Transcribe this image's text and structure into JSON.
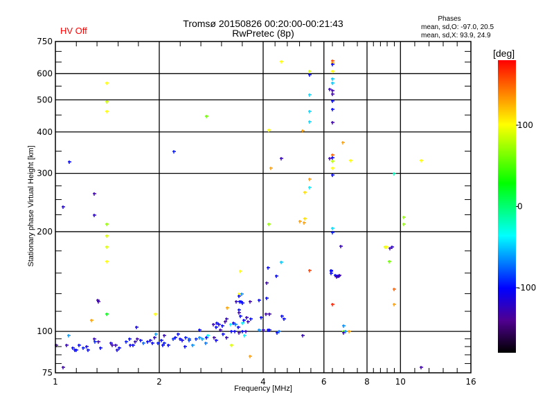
{
  "header": {
    "title_line1": "Tromsø 20150826 00:20:00-00:21:43",
    "title_line2": "RwPretec (8p)",
    "status": "HV Off",
    "phases_heading": "Phases",
    "phases_o": "mean, sd,O: -97.0, 20.5",
    "phases_x": "mean, sd,X:  93.9, 24.9"
  },
  "chart_data": {
    "type": "scatter",
    "title": "Tromsø 20150826 00:20:00-00:21:43",
    "xlabel": "Frequency [MHz]",
    "ylabel": "Stationary phase Virtual Height [km]",
    "xscale": "log",
    "yscale": "log",
    "xlim": [
      1,
      16
    ],
    "ylim": [
      75,
      750
    ],
    "xticks": [
      1,
      2,
      4,
      6,
      8,
      10,
      16
    ],
    "xtick_labels": [
      "1",
      "2",
      "4",
      "6",
      "8",
      "10",
      "16"
    ],
    "yticks": [
      75,
      100,
      200,
      300,
      400,
      500,
      600,
      750
    ],
    "ytick_labels": [
      "75",
      "100",
      "200",
      "300",
      "400",
      "500",
      "600",
      "750"
    ],
    "xgrid": [
      2,
      4,
      6,
      8,
      10
    ],
    "ygrid": [
      100,
      200,
      300,
      400,
      500,
      600
    ],
    "colorbar": {
      "label": "[deg]",
      "range": [
        -180,
        180
      ],
      "ticks": [
        100,
        0,
        -100
      ],
      "tick_labels": [
        "100",
        "0",
        "-100"
      ]
    },
    "point_fields": [
      "frequency_mhz",
      "height_km",
      "phase_deg"
    ],
    "points": [
      [
        1.005,
        91,
        -130
      ],
      [
        1.077,
        91,
        -125
      ],
      [
        1.138,
        88,
        -100
      ],
      [
        1.12,
        89,
        -100
      ],
      [
        1.15,
        88,
        -100
      ],
      [
        1.17,
        91,
        -100
      ],
      [
        1.203,
        89,
        -95
      ],
      [
        1.231,
        90,
        -110
      ],
      [
        1.243,
        88,
        -100
      ],
      [
        1.295,
        95,
        -125
      ],
      [
        1.301,
        93,
        -90
      ],
      [
        1.332,
        93,
        -130
      ],
      [
        1.351,
        89,
        -100
      ],
      [
        1.447,
        92,
        -115
      ],
      [
        1.46,
        91,
        -130
      ],
      [
        1.495,
        91,
        -125
      ],
      [
        1.508,
        88,
        -110
      ],
      [
        1.53,
        89,
        -100
      ],
      [
        1.602,
        93,
        -95
      ],
      [
        1.639,
        95,
        -100
      ],
      [
        1.647,
        91,
        -105
      ],
      [
        1.677,
        91,
        -100
      ],
      [
        1.701,
        93,
        -125
      ],
      [
        1.725,
        95,
        -130
      ],
      [
        1.765,
        94,
        -100
      ],
      [
        1.798,
        92,
        -75
      ],
      [
        1.849,
        93,
        -100
      ],
      [
        1.883,
        94,
        -110
      ],
      [
        1.91,
        92,
        -100
      ],
      [
        1.937,
        96,
        -120
      ],
      [
        1.955,
        98,
        -60
      ],
      [
        1.983,
        92,
        -95
      ],
      [
        2.048,
        91,
        -100
      ],
      [
        2.068,
        97,
        -125
      ],
      [
        1.092,
        97,
        -60
      ],
      [
        1.052,
        78,
        -130
      ],
      [
        1.326,
        124,
        -130
      ],
      [
        1.332,
        123,
        -130
      ],
      [
        1.408,
        113,
        25
      ],
      [
        1.271,
        108,
        130
      ],
      [
        1.946,
        113,
        100
      ],
      [
        1.717,
        103,
        -110
      ],
      [
        2.03,
        94,
        -100
      ],
      [
        2.068,
        92,
        -95
      ],
      [
        2.124,
        91,
        -100
      ],
      [
        2.194,
        95,
        -90
      ],
      [
        2.224,
        96,
        -100
      ],
      [
        2.297,
        95,
        -100
      ],
      [
        2.329,
        94,
        -110
      ],
      [
        2.383,
        96,
        -95
      ],
      [
        2.438,
        94,
        -85
      ],
      [
        2.495,
        91,
        -65
      ],
      [
        2.553,
        95,
        -90
      ],
      [
        2.614,
        96,
        -65
      ],
      [
        2.662,
        95,
        -60
      ],
      [
        2.724,
        92,
        -70
      ],
      [
        2.737,
        96,
        -100
      ],
      [
        2.762,
        97,
        -40
      ],
      [
        2.88,
        96,
        -130
      ],
      [
        2.92,
        94,
        -105
      ],
      [
        3.059,
        98,
        -100
      ],
      [
        3.131,
        96,
        -125
      ],
      [
        2.372,
        90,
        -100
      ],
      [
        2.266,
        98,
        -100
      ],
      [
        2.438,
        95,
        -80
      ],
      [
        2.614,
        101,
        -100
      ],
      [
        2.867,
        105,
        -125
      ],
      [
        2.934,
        106,
        -100
      ],
      [
        2.92,
        103,
        -100
      ],
      [
        2.975,
        105,
        -110
      ],
      [
        3.045,
        104,
        -100
      ],
      [
        3.003,
        101,
        -130
      ],
      [
        3.219,
        105,
        -40
      ],
      [
        3.283,
        106,
        -100
      ],
      [
        3.329,
        105,
        -70
      ],
      [
        3.391,
        103,
        -100
      ],
      [
        3.234,
        100,
        -100
      ],
      [
        3.313,
        100,
        -105
      ],
      [
        3.406,
        99,
        -130
      ],
      [
        3.482,
        100,
        -100
      ],
      [
        3.563,
        100,
        -125
      ],
      [
        3.89,
        101,
        -65
      ],
      [
        4.0,
        101,
        -125
      ],
      [
        3.131,
        109,
        -125
      ],
      [
        3.102,
        107,
        -130
      ],
      [
        3.531,
        97,
        -40
      ],
      [
        3.234,
        91,
        90
      ],
      [
        3.665,
        84,
        130
      ],
      [
        3.406,
        116,
        -100
      ],
      [
        3.406,
        114,
        -130
      ],
      [
        3.58,
        110,
        -125
      ],
      [
        3.438,
        111,
        -100
      ],
      [
        3.514,
        108,
        -100
      ],
      [
        3.614,
        107,
        -125
      ],
      [
        3.682,
        109,
        -100
      ],
      [
        3.944,
        110,
        -100
      ],
      [
        3.482,
        106,
        -40
      ],
      [
        3.146,
        118,
        130
      ],
      [
        3.344,
        123,
        -125
      ],
      [
        3.422,
        123,
        -100
      ],
      [
        3.454,
        123,
        -100
      ],
      [
        3.482,
        122,
        -100
      ],
      [
        3.665,
        123,
        -130
      ],
      [
        3.89,
        124,
        -100
      ],
      [
        4.093,
        126,
        -100
      ],
      [
        3.406,
        130,
        100
      ],
      [
        3.47,
        130,
        -65
      ],
      [
        3.406,
        128,
        -100
      ],
      [
        4.093,
        140,
        -130
      ],
      [
        4.15,
        211,
        70
      ],
      [
        4.074,
        113,
        -130
      ],
      [
        4.17,
        113,
        -130
      ],
      [
        4.531,
        111,
        -100
      ],
      [
        4.594,
        109,
        -100
      ],
      [
        4.131,
        101,
        -100
      ],
      [
        4.17,
        101,
        -100
      ],
      [
        4.387,
        99,
        -100
      ],
      [
        4.448,
        100,
        -70
      ],
      [
        5.206,
        97,
        -125
      ],
      [
        4.131,
        156,
        -100
      ],
      [
        4.367,
        147,
        -100
      ],
      [
        4.51,
        162,
        -50
      ],
      [
        5.45,
        153,
        160
      ],
      [
        4.208,
        311,
        130
      ],
      [
        4.51,
        333,
        -125
      ],
      [
        4.15,
        405,
        100
      ],
      [
        4.51,
        652,
        100
      ],
      [
        5.45,
        610,
        90
      ],
      [
        5.45,
        595,
        -100
      ],
      [
        5.45,
        518,
        -45
      ],
      [
        5.45,
        461,
        -45
      ],
      [
        5.45,
        430,
        -45
      ],
      [
        5.206,
        404,
        130
      ],
      [
        5.45,
        288,
        130
      ],
      [
        5.45,
        272,
        -40
      ],
      [
        5.278,
        263,
        110
      ],
      [
        5.111,
        215,
        130
      ],
      [
        5.278,
        219,
        110
      ],
      [
        5.254,
        213,
        130
      ],
      [
        6.35,
        656,
        160
      ],
      [
        6.35,
        646,
        130
      ],
      [
        6.35,
        640,
        -100
      ],
      [
        6.35,
        611,
        100
      ],
      [
        6.35,
        579,
        -50
      ],
      [
        6.35,
        562,
        -50
      ],
      [
        6.232,
        538,
        -125
      ],
      [
        6.35,
        533,
        -130
      ],
      [
        6.35,
        521,
        -130
      ],
      [
        6.35,
        496,
        -100
      ],
      [
        6.35,
        468,
        -100
      ],
      [
        6.35,
        428,
        -130
      ],
      [
        6.35,
        341,
        150
      ],
      [
        6.35,
        334,
        -100
      ],
      [
        6.232,
        333,
        -130
      ],
      [
        6.35,
        327,
        80
      ],
      [
        6.35,
        311,
        100
      ],
      [
        6.35,
        297,
        -100
      ],
      [
        6.35,
        205,
        -45
      ],
      [
        6.35,
        199,
        -95
      ],
      [
        6.29,
        153,
        -100
      ],
      [
        6.29,
        152,
        -100
      ],
      [
        6.29,
        150,
        -100
      ],
      [
        6.467,
        148,
        -100
      ],
      [
        6.557,
        147,
        -100
      ],
      [
        6.65,
        148,
        -130
      ],
      [
        6.527,
        146,
        -130
      ],
      [
        6.618,
        147,
        -120
      ],
      [
        6.35,
        121,
        170
      ],
      [
        6.836,
        104,
        -65
      ],
      [
        6.836,
        100,
        60
      ],
      [
        6.836,
        99,
        -130
      ],
      [
        6.932,
        100,
        -60
      ],
      [
        7.094,
        100,
        130
      ],
      [
        6.711,
        181,
        -125
      ],
      [
        6.805,
        372,
        130
      ],
      [
        7.16,
        328,
        100
      ],
      [
        9.01,
        180,
        90
      ],
      [
        9.09,
        180,
        100
      ],
      [
        9.43,
        180,
        -120
      ],
      [
        9.3,
        178,
        -130
      ],
      [
        9.26,
        163,
        60
      ],
      [
        9.56,
        134,
        150
      ],
      [
        9.56,
        121,
        130
      ],
      [
        9.56,
        300,
        -20
      ],
      [
        10.2,
        221,
        70
      ],
      [
        10.2,
        211,
        70
      ],
      [
        11.47,
        328,
        100
      ],
      [
        11.47,
        78,
        -130
      ],
      [
        1.408,
        562,
        100
      ],
      [
        1.408,
        494,
        85
      ],
      [
        1.408,
        461,
        100
      ],
      [
        2.737,
        446,
        60
      ],
      [
        2.204,
        349,
        -95
      ],
      [
        1.097,
        325,
        -100
      ],
      [
        1.295,
        260,
        -130
      ],
      [
        1.052,
        238,
        -115
      ],
      [
        1.295,
        224,
        -120
      ],
      [
        1.408,
        211,
        70
      ],
      [
        1.408,
        194,
        90
      ],
      [
        1.408,
        180,
        90
      ],
      [
        1.408,
        163,
        100
      ],
      [
        3.438,
        152,
        100
      ]
    ]
  }
}
